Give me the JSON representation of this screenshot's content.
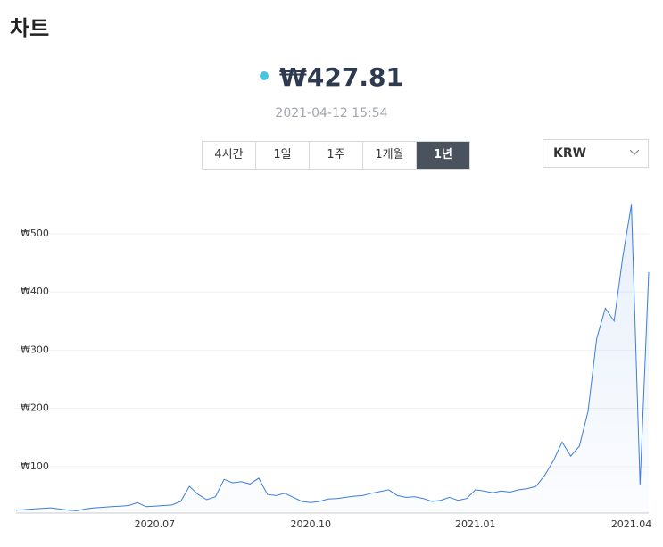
{
  "header": {
    "title": "차트"
  },
  "price": {
    "value": "₩427.81",
    "time": "2021-04-12 15:54"
  },
  "range_buttons": {
    "items": [
      "4시간",
      "1일",
      "1주",
      "1개월",
      "1년"
    ],
    "active": 4
  },
  "currency": {
    "selected": "KRW"
  },
  "chart_data": {
    "type": "line",
    "color": "#3b7ddd",
    "categories": [
      null,
      null,
      null,
      null,
      null,
      null,
      null,
      null,
      null,
      null,
      null,
      null,
      null,
      null,
      null,
      null,
      "2020.07",
      null,
      null,
      null,
      null,
      null,
      null,
      null,
      null,
      null,
      null,
      null,
      null,
      null,
      null,
      null,
      null,
      null,
      "2020.10",
      null,
      null,
      null,
      null,
      null,
      null,
      null,
      null,
      null,
      null,
      null,
      null,
      null,
      null,
      null,
      null,
      null,
      null,
      "2021.01",
      null,
      null,
      null,
      null,
      null,
      null,
      null,
      null,
      null,
      null,
      null,
      null,
      null,
      null,
      null,
      null,
      null,
      "2021.04",
      null,
      null
    ],
    "values": [
      25,
      26,
      27,
      28,
      29,
      27,
      25,
      24,
      27,
      29,
      30,
      31,
      32,
      33,
      38,
      31,
      32,
      33,
      34,
      40,
      66,
      52,
      43,
      48,
      78,
      72,
      74,
      70,
      80,
      52,
      50,
      54,
      47,
      40,
      38,
      40,
      44,
      45,
      47,
      49,
      50,
      54,
      57,
      60,
      50,
      47,
      48,
      45,
      40,
      42,
      47,
      42,
      45,
      60,
      58,
      55,
      58,
      56,
      60,
      62,
      66,
      85,
      110,
      142,
      118,
      135,
      195,
      320,
      372,
      350,
      460,
      550,
      68,
      434
    ],
    "ylim": [
      20,
      572
    ],
    "yticks": [
      {
        "value": 100,
        "label": "₩100"
      },
      {
        "value": 200,
        "label": "₩200"
      },
      {
        "value": 300,
        "label": "₩300"
      },
      {
        "value": 400,
        "label": "₩400"
      },
      {
        "value": 500,
        "label": "₩500"
      }
    ],
    "grid": true
  }
}
